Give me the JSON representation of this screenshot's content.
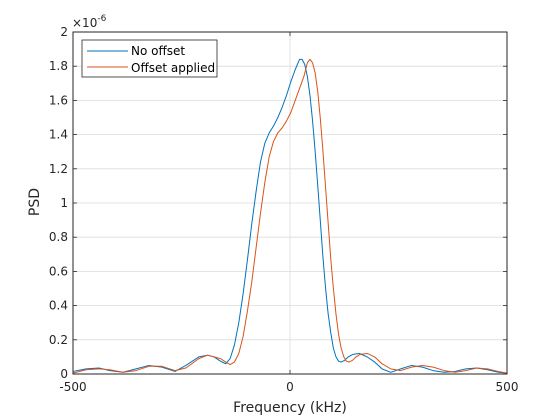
{
  "chart_data": {
    "type": "line",
    "title": "",
    "xlabel": "Frequency (kHz)",
    "ylabel": "PSD",
    "y_exponent": "×10",
    "y_exponent_power": "-6",
    "xlim": [
      -500,
      500
    ],
    "ylim": [
      0,
      2
    ],
    "x_ticks": [
      -500,
      0,
      500
    ],
    "x_tick_labels": [
      "-500",
      "0",
      "500"
    ],
    "y_ticks": [
      0,
      0.2,
      0.4,
      0.6,
      0.8,
      1,
      1.2,
      1.4,
      1.6,
      1.8,
      2
    ],
    "y_tick_labels": [
      "0",
      "0.2",
      "0.4",
      "0.6",
      "0.8",
      "1",
      "1.2",
      "1.4",
      "1.6",
      "1.8",
      "2"
    ],
    "grid": true,
    "legend_position": "top-left",
    "series": [
      {
        "name": "No offset",
        "color": "#0072BD",
        "x": [
          -500,
          -470,
          -440,
          -415,
          -385,
          -355,
          -325,
          -295,
          -265,
          -240,
          -210,
          -190,
          -175,
          -160,
          -148,
          -138,
          -128,
          -118,
          -108,
          -98,
          -88,
          -78,
          -68,
          -58,
          -48,
          -38,
          -28,
          -18,
          -8,
          2,
          12,
          22,
          28,
          34,
          40,
          46,
          52,
          58,
          64,
          70,
          76,
          82,
          88,
          94,
          100,
          106,
          112,
          118,
          126,
          134,
          145,
          160,
          178,
          195,
          212,
          232,
          255,
          280,
          305,
          330,
          355,
          380,
          405,
          430,
          455,
          480,
          500
        ],
        "y": [
          0.015,
          0.03,
          0.035,
          0.02,
          0.01,
          0.03,
          0.05,
          0.04,
          0.015,
          0.05,
          0.1,
          0.11,
          0.1,
          0.075,
          0.06,
          0.09,
          0.17,
          0.3,
          0.47,
          0.67,
          0.88,
          1.07,
          1.24,
          1.35,
          1.41,
          1.45,
          1.5,
          1.56,
          1.63,
          1.71,
          1.78,
          1.84,
          1.84,
          1.81,
          1.74,
          1.63,
          1.48,
          1.3,
          1.1,
          0.89,
          0.68,
          0.5,
          0.35,
          0.24,
          0.15,
          0.1,
          0.075,
          0.07,
          0.08,
          0.1,
          0.115,
          0.12,
          0.1,
          0.07,
          0.03,
          0.01,
          0.03,
          0.05,
          0.04,
          0.02,
          0.01,
          0.015,
          0.03,
          0.035,
          0.025,
          0.01,
          0.005
        ]
      },
      {
        "name": "Offset applied",
        "color": "#D95319",
        "x": [
          -500,
          -470,
          -440,
          -415,
          -385,
          -355,
          -325,
          -295,
          -265,
          -240,
          -210,
          -190,
          -175,
          -160,
          -148,
          -138,
          -128,
          -118,
          -108,
          -98,
          -88,
          -78,
          -68,
          -58,
          -48,
          -38,
          -28,
          -18,
          -8,
          2,
          12,
          22,
          32,
          40,
          46,
          52,
          58,
          64,
          70,
          76,
          82,
          88,
          94,
          100,
          106,
          112,
          118,
          124,
          130,
          136,
          144,
          152,
          162,
          178,
          195,
          212,
          232,
          255,
          280,
          305,
          330,
          355,
          380,
          405,
          430,
          455,
          480,
          500
        ],
        "y": [
          0.005,
          0.025,
          0.03,
          0.025,
          0.01,
          0.02,
          0.045,
          0.045,
          0.02,
          0.035,
          0.09,
          0.11,
          0.1,
          0.09,
          0.07,
          0.055,
          0.07,
          0.12,
          0.22,
          0.37,
          0.54,
          0.74,
          0.94,
          1.12,
          1.27,
          1.36,
          1.41,
          1.44,
          1.48,
          1.53,
          1.6,
          1.67,
          1.74,
          1.82,
          1.84,
          1.82,
          1.76,
          1.65,
          1.49,
          1.3,
          1.09,
          0.88,
          0.67,
          0.5,
          0.35,
          0.23,
          0.15,
          0.1,
          0.075,
          0.07,
          0.08,
          0.1,
          0.115,
          0.12,
          0.1,
          0.06,
          0.03,
          0.02,
          0.04,
          0.05,
          0.04,
          0.02,
          0.01,
          0.02,
          0.035,
          0.03,
          0.015,
          0.005
        ]
      }
    ]
  }
}
